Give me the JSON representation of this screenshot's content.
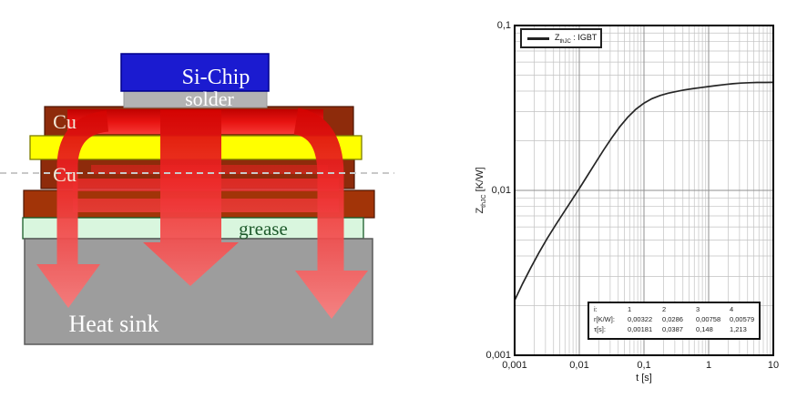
{
  "left_diagram": {
    "layers": {
      "si_chip": {
        "label": "Si-Chip",
        "color": "#1b1bd0",
        "border": "#00008b"
      },
      "solder": {
        "label": "solder",
        "color": "#b3b3b3",
        "border": "#9a9a9a"
      },
      "cu_top": {
        "label": "Cu",
        "color": "#8e2b0b",
        "border": "#4d1603"
      },
      "ceramic": {
        "color": "#ffff00",
        "border": "#7d7d00"
      },
      "cu_bottom": {
        "label": "Cu",
        "color": "#8e2b0b",
        "border": "#4d1603"
      },
      "base_plate": {
        "color": "#a23408",
        "border": "#4d1603"
      },
      "grease": {
        "label": "grease",
        "color": "#d9f6de",
        "border": "#1a5c28"
      },
      "heat_sink": {
        "label": "Heat sink",
        "color": "#9d9d9d",
        "border": "#5a5a5a"
      }
    },
    "label_colors": {
      "light": "#ffffff",
      "cream": "#f2e8d8",
      "green": "#1d5a2b"
    },
    "arrow": {
      "top_color": "#dd0000",
      "bottom_color": "#fa7e7e"
    }
  },
  "chart": {
    "legend": {
      "symbol": "Z",
      "subscript": "thJC",
      "suffix": " : IGBT"
    },
    "y_axis": {
      "symbol": "Z",
      "subscript": "thJC",
      "suffix": " [K/W]",
      "ticks": [
        "0,1",
        "0,01",
        "0,001"
      ]
    },
    "x_axis": {
      "label": "t [s]",
      "ticks": [
        "0,001",
        "0,01",
        "0,1",
        "1",
        "10"
      ]
    },
    "param_table": {
      "rows": [
        {
          "label": "i:",
          "values": [
            "1",
            "2",
            "3",
            "4"
          ]
        },
        {
          "label": "r[K/W]:",
          "values": [
            "0,00322",
            "0,0286",
            "0,00758",
            "0,00579"
          ]
        },
        {
          "label": "τ[s]:",
          "values": [
            "0,00181",
            "0,0387",
            "0,148",
            "1,213"
          ]
        }
      ]
    },
    "curve_color": "#262626",
    "grid_minor_color": "#c2c2c2",
    "grid_major_color": "#8f8f8f"
  },
  "chart_data": {
    "type": "line",
    "title": "",
    "xlabel": "t [s]",
    "ylabel": "ZthJC [K/W]",
    "xscale": "log",
    "yscale": "log",
    "xlim": [
      0.001,
      10
    ],
    "ylim": [
      0.001,
      0.1
    ],
    "grid": true,
    "legend_position": "top-left",
    "legend": [
      "ZthJC : IGBT"
    ],
    "foster_model": {
      "i": [
        1,
        2,
        3,
        4
      ],
      "r_KW": [
        0.00322,
        0.0286,
        0.00758,
        0.00579
      ],
      "tau_s": [
        0.00181,
        0.0387,
        0.148,
        1.213
      ]
    },
    "series": [
      {
        "name": "ZthJC : IGBT",
        "x": [
          0.001,
          0.00133,
          0.00178,
          0.00237,
          0.00316,
          0.00422,
          0.00562,
          0.0075,
          0.01,
          0.0133,
          0.0178,
          0.0237,
          0.0316,
          0.0422,
          0.0562,
          0.075,
          0.1,
          0.133,
          0.178,
          0.237,
          0.316,
          0.422,
          0.562,
          0.75,
          1,
          1.33,
          1.78,
          2.37,
          3.16,
          4.22,
          5.62,
          7.5,
          10
        ],
        "y": [
          0.00215,
          0.00272,
          0.0034,
          0.00418,
          0.00508,
          0.0061,
          0.00725,
          0.00862,
          0.01026,
          0.01225,
          0.01471,
          0.01755,
          0.02079,
          0.02429,
          0.02778,
          0.03106,
          0.03384,
          0.03599,
          0.03763,
          0.03884,
          0.03982,
          0.04066,
          0.04138,
          0.04202,
          0.04264,
          0.04325,
          0.04386,
          0.04437,
          0.04476,
          0.04501,
          0.04513,
          0.04518,
          0.04519
        ]
      }
    ]
  }
}
